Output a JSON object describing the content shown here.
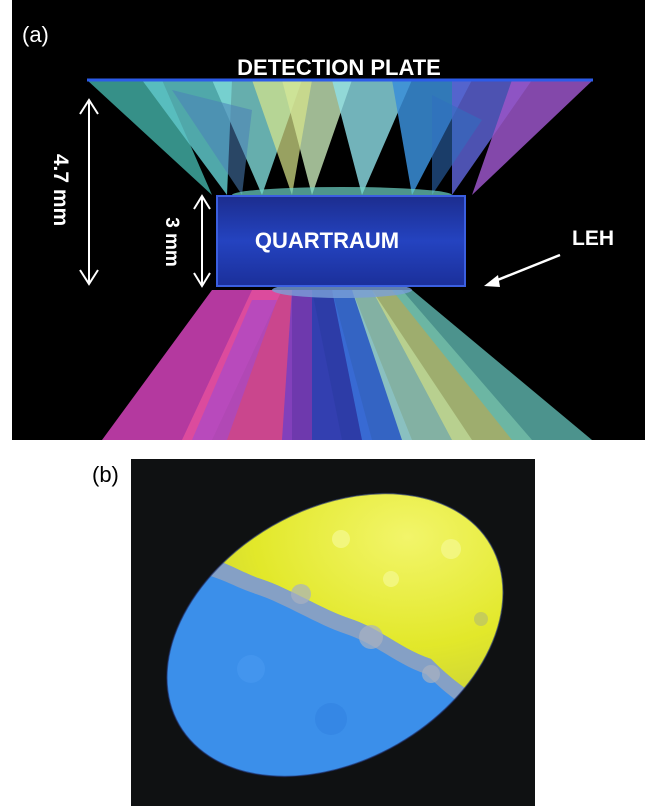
{
  "panel_a": {
    "label": "(a)",
    "detection_plate_label": "DETECTION PLATE",
    "quartraum_label": "QUARTRAUM",
    "leh_label": "LEH",
    "dim_outer": "4.7 mm",
    "dim_inner": "3 mm"
  },
  "panel_b": {
    "label": "(b)"
  },
  "colors": {
    "background": "#000000",
    "plate": "#2c5be8",
    "quartraum_top": "#1a2f9a",
    "quartraum_bottom": "#2a4fd0",
    "spot_blue": "#3a8ee8",
    "spot_yellow": "#e4e92a"
  }
}
